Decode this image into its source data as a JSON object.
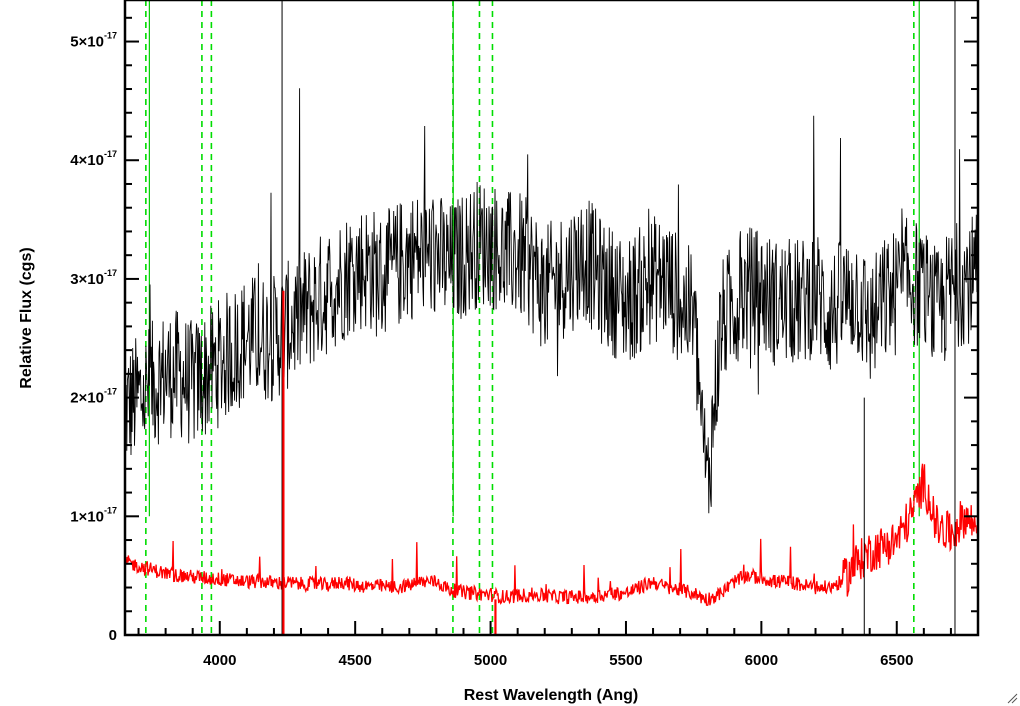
{
  "chart_data": {
    "type": "line",
    "title": "",
    "xlabel": "Rest Wavelength (Ang)",
    "ylabel": "Relative Flux (cgs)",
    "xlim": [
      3650,
      6800
    ],
    "ylim": [
      0,
      5.35
    ],
    "y_unit_exponent": "-17",
    "x_ticks": [
      4000,
      4500,
      5000,
      5500,
      6000,
      6500
    ],
    "x_tick_labels": [
      "4000",
      "4500",
      "5000",
      "5500",
      "6000",
      "6500"
    ],
    "y_ticks": [
      0,
      1,
      2,
      3,
      4,
      5
    ],
    "y_tick_labels": [
      {
        "mantissa": "0",
        "exp": ""
      },
      {
        "mantissa": "1×10",
        "exp": "-17"
      },
      {
        "mantissa": "2×10",
        "exp": "-17"
      },
      {
        "mantissa": "3×10",
        "exp": "-17"
      },
      {
        "mantissa": "4×10",
        "exp": "-17"
      },
      {
        "mantissa": "5×10",
        "exp": "-17"
      }
    ],
    "grid": false,
    "legend": "none",
    "marker_lines": {
      "dashed_green": [
        3727,
        3934,
        3969,
        4861,
        4959,
        5007,
        6563
      ],
      "solid_green": [
        3740,
        4862,
        6583
      ]
    },
    "series": [
      {
        "color": "#000000",
        "values_description_free": true,
        "x": [
          3650,
          3700,
          3750,
          3800,
          3850,
          3900,
          3950,
          4000,
          4050,
          4100,
          4150,
          4200,
          4250,
          4300,
          4350,
          4400,
          4450,
          4500,
          4550,
          4600,
          4650,
          4700,
          4750,
          4800,
          4850,
          4900,
          4950,
          5000,
          5050,
          5100,
          5150,
          5200,
          5250,
          5300,
          5350,
          5400,
          5450,
          5500,
          5550,
          5600,
          5650,
          5700,
          5750,
          5800,
          5850,
          5900,
          5950,
          6000,
          6050,
          6100,
          6150,
          6200,
          6250,
          6300,
          6350,
          6400,
          6450,
          6500,
          6550,
          6600,
          6650,
          6700,
          6750,
          6800
        ],
        "y": [
          1.9,
          2.0,
          2.1,
          2.2,
          2.2,
          2.1,
          2.2,
          2.3,
          2.4,
          2.5,
          2.5,
          2.5,
          2.6,
          2.7,
          2.8,
          2.9,
          3.0,
          3.1,
          3.1,
          3.0,
          3.1,
          3.2,
          3.2,
          3.2,
          3.1,
          3.2,
          3.3,
          3.3,
          3.2,
          3.2,
          3.1,
          2.9,
          3.0,
          3.1,
          3.2,
          3.0,
          2.9,
          2.8,
          2.9,
          3.0,
          3.0,
          2.8,
          2.7,
          1.2,
          2.6,
          2.8,
          2.9,
          2.9,
          2.8,
          2.8,
          2.8,
          2.9,
          2.7,
          2.8,
          2.9,
          2.6,
          2.8,
          2.9,
          3.0,
          2.9,
          2.7,
          2.9,
          3.0,
          3.0
        ]
      },
      {
        "color": "#ff0000",
        "x": [
          3650,
          3700,
          3750,
          3800,
          3850,
          3900,
          3950,
          4000,
          4050,
          4100,
          4150,
          4200,
          4250,
          4300,
          4350,
          4400,
          4450,
          4500,
          4550,
          4600,
          4650,
          4700,
          4750,
          4800,
          4850,
          4900,
          4950,
          5000,
          5050,
          5100,
          5150,
          5200,
          5250,
          5300,
          5350,
          5400,
          5450,
          5500,
          5550,
          5600,
          5650,
          5700,
          5750,
          5800,
          5850,
          5900,
          5950,
          6000,
          6050,
          6100,
          6150,
          6200,
          6250,
          6300,
          6350,
          6400,
          6450,
          6500,
          6550,
          6600,
          6650,
          6700,
          6750,
          6800
        ],
        "y": [
          0.62,
          0.58,
          0.55,
          0.52,
          0.5,
          0.49,
          0.48,
          0.47,
          0.46,
          0.45,
          0.45,
          0.44,
          0.44,
          0.43,
          0.43,
          0.42,
          0.45,
          0.42,
          0.41,
          0.41,
          0.4,
          0.42,
          0.45,
          0.45,
          0.38,
          0.36,
          0.35,
          0.34,
          0.32,
          0.33,
          0.34,
          0.33,
          0.32,
          0.32,
          0.32,
          0.33,
          0.35,
          0.35,
          0.4,
          0.45,
          0.4,
          0.38,
          0.35,
          0.3,
          0.35,
          0.45,
          0.5,
          0.48,
          0.45,
          0.45,
          0.42,
          0.4,
          0.4,
          0.45,
          0.6,
          0.7,
          0.75,
          0.8,
          1.0,
          1.3,
          0.9,
          0.85,
          1.0,
          0.9
        ]
      }
    ]
  }
}
